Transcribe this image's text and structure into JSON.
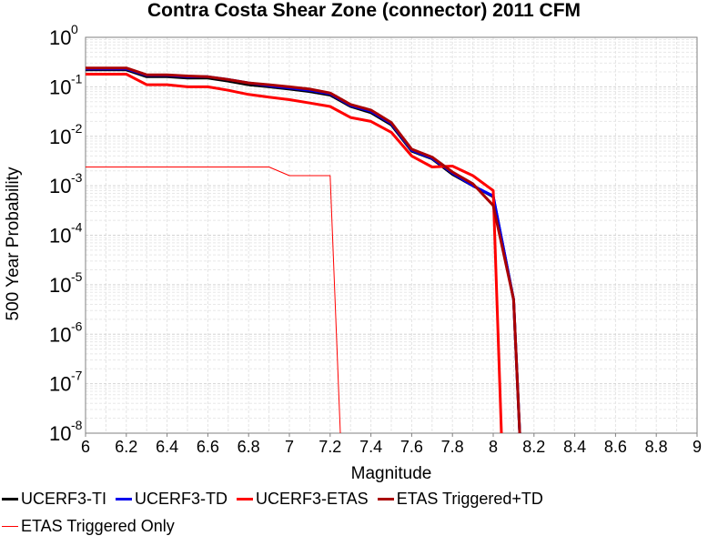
{
  "chart_data": {
    "type": "line",
    "title": "Contra Costa Shear Zone (connector) 2011 CFM",
    "xlabel": "Magnitude",
    "ylabel": "500 Year Probability",
    "x_scale": "linear",
    "y_scale": "log",
    "xlim": [
      6,
      9
    ],
    "ylim": [
      1e-08,
      1
    ],
    "x_ticks": [
      "6",
      "6.2",
      "6.4",
      "6.6",
      "6.8",
      "7",
      "7.2",
      "7.4",
      "7.6",
      "7.8",
      "8",
      "8.2",
      "8.4",
      "8.6",
      "8.8",
      "9"
    ],
    "y_ticks": [
      {
        "base": "10",
        "exp": "0"
      },
      {
        "base": "10",
        "exp": "-1"
      },
      {
        "base": "10",
        "exp": "-2"
      },
      {
        "base": "10",
        "exp": "-3"
      },
      {
        "base": "10",
        "exp": "-4"
      },
      {
        "base": "10",
        "exp": "-5"
      },
      {
        "base": "10",
        "exp": "-6"
      },
      {
        "base": "10",
        "exp": "-7"
      },
      {
        "base": "10",
        "exp": "-8"
      }
    ],
    "grid": true,
    "legend_position": "bottom",
    "series": [
      {
        "name": "UCERF3-TI",
        "color": "#000000",
        "width": 3,
        "x": [
          6.0,
          6.1,
          6.2,
          6.3,
          6.4,
          6.5,
          6.6,
          6.7,
          6.8,
          6.9,
          7.0,
          7.1,
          7.2,
          7.3,
          7.4,
          7.5,
          7.6,
          7.7,
          7.8,
          7.9,
          8.0,
          8.1,
          8.13
        ],
        "y": [
          0.22,
          0.22,
          0.22,
          0.16,
          0.16,
          0.15,
          0.15,
          0.13,
          0.11,
          0.1,
          0.09,
          0.08,
          0.068,
          0.04,
          0.03,
          0.017,
          0.005,
          0.0035,
          0.0017,
          0.001,
          0.0006,
          5e-06,
          1e-08
        ]
      },
      {
        "name": "UCERF3-TD",
        "color": "#0000ee",
        "width": 3,
        "x": [
          6.0,
          6.1,
          6.2,
          6.3,
          6.4,
          6.5,
          6.6,
          6.7,
          6.8,
          6.9,
          7.0,
          7.1,
          7.2,
          7.3,
          7.4,
          7.5,
          7.6,
          7.7,
          7.8,
          7.9,
          8.0,
          8.1,
          8.13
        ],
        "y": [
          0.23,
          0.23,
          0.23,
          0.17,
          0.17,
          0.16,
          0.16,
          0.14,
          0.12,
          0.105,
          0.095,
          0.085,
          0.072,
          0.042,
          0.032,
          0.018,
          0.0052,
          0.0036,
          0.0018,
          0.001,
          0.00062,
          5e-06,
          1e-08
        ]
      },
      {
        "name": "UCERF3-ETAS",
        "color": "#ff0000",
        "width": 3,
        "x": [
          6.0,
          6.1,
          6.2,
          6.3,
          6.4,
          6.5,
          6.6,
          6.7,
          6.8,
          6.9,
          7.0,
          7.1,
          7.2,
          7.3,
          7.4,
          7.5,
          7.6,
          7.7,
          7.8,
          7.9,
          8.0,
          8.04
        ],
        "y": [
          0.18,
          0.18,
          0.18,
          0.11,
          0.11,
          0.1,
          0.1,
          0.085,
          0.07,
          0.062,
          0.055,
          0.047,
          0.04,
          0.024,
          0.02,
          0.012,
          0.004,
          0.0024,
          0.0025,
          0.0016,
          0.0008,
          1e-08
        ]
      },
      {
        "name": "ETAS Triggered+TD",
        "color": "#aa0000",
        "width": 3,
        "x": [
          6.0,
          6.1,
          6.2,
          6.3,
          6.4,
          6.5,
          6.6,
          6.7,
          6.8,
          6.9,
          7.0,
          7.1,
          7.2,
          7.3,
          7.4,
          7.5,
          7.6,
          7.7,
          7.8,
          7.9,
          8.0,
          8.1,
          8.13
        ],
        "y": [
          0.24,
          0.24,
          0.24,
          0.175,
          0.175,
          0.165,
          0.16,
          0.14,
          0.12,
          0.11,
          0.1,
          0.09,
          0.075,
          0.044,
          0.034,
          0.019,
          0.0055,
          0.0038,
          0.0019,
          0.0011,
          0.0004,
          5e-06,
          1e-08
        ]
      },
      {
        "name": "ETAS Triggered Only",
        "color": "#ff0000",
        "width": 1,
        "x": [
          6.0,
          6.9,
          7.0,
          7.2,
          7.25
        ],
        "y": [
          0.0024,
          0.0024,
          0.0016,
          0.0016,
          1e-08
        ]
      }
    ]
  }
}
